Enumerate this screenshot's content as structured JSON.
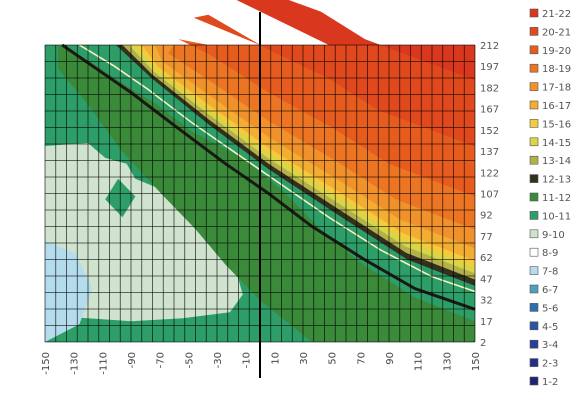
{
  "chart_data": {
    "type": "heatmap",
    "title": "",
    "xlabel": "",
    "ylabel": "",
    "x_ticks": [
      "-150",
      "-130",
      "-110",
      "-90",
      "-70",
      "-50",
      "-30",
      "-10",
      "10",
      "30",
      "50",
      "70",
      "90",
      "110",
      "130",
      "150"
    ],
    "y_ticks": [
      "212",
      "197",
      "182",
      "167",
      "152",
      "137",
      "122",
      "107",
      "92",
      "77",
      "62",
      "47",
      "32",
      "17",
      "2"
    ],
    "xlim": [
      -150,
      150
    ],
    "ylim": [
      2,
      212
    ],
    "grid": true,
    "legend_position": "right",
    "legend": [
      {
        "label": "21-22",
        "color": "#d9381e"
      },
      {
        "label": "20-21",
        "color": "#e0481d"
      },
      {
        "label": "19-20",
        "color": "#e65c1f"
      },
      {
        "label": "18-19",
        "color": "#ec7524"
      },
      {
        "label": "17-18",
        "color": "#f0912b"
      },
      {
        "label": "16-17",
        "color": "#f3ad32"
      },
      {
        "label": "15-16",
        "color": "#f4cb3c"
      },
      {
        "label": "14-15",
        "color": "#d9d548"
      },
      {
        "label": "13-14",
        "color": "#b3b14a"
      },
      {
        "label": "12-13",
        "color": "#33301d"
      },
      {
        "label": "11-12",
        "color": "#3a8a3a"
      },
      {
        "label": "10-11",
        "color": "#2e9e68"
      },
      {
        "label": "9-10",
        "color": "#cfe3cf"
      },
      {
        "label": "8-9",
        "color": "#ffffff"
      },
      {
        "label": "7-8",
        "color": "#b5dcec"
      },
      {
        "label": "6-7",
        "color": "#4fa0bf"
      },
      {
        "label": "5-6",
        "color": "#2d6fb0"
      },
      {
        "label": "4-5",
        "color": "#2a55a5"
      },
      {
        "label": "3-4",
        "color": "#283f97"
      },
      {
        "label": "2-3",
        "color": "#262f86"
      },
      {
        "label": "1-2",
        "color": "#1f2470"
      }
    ],
    "vertical_line_x": 0
  }
}
